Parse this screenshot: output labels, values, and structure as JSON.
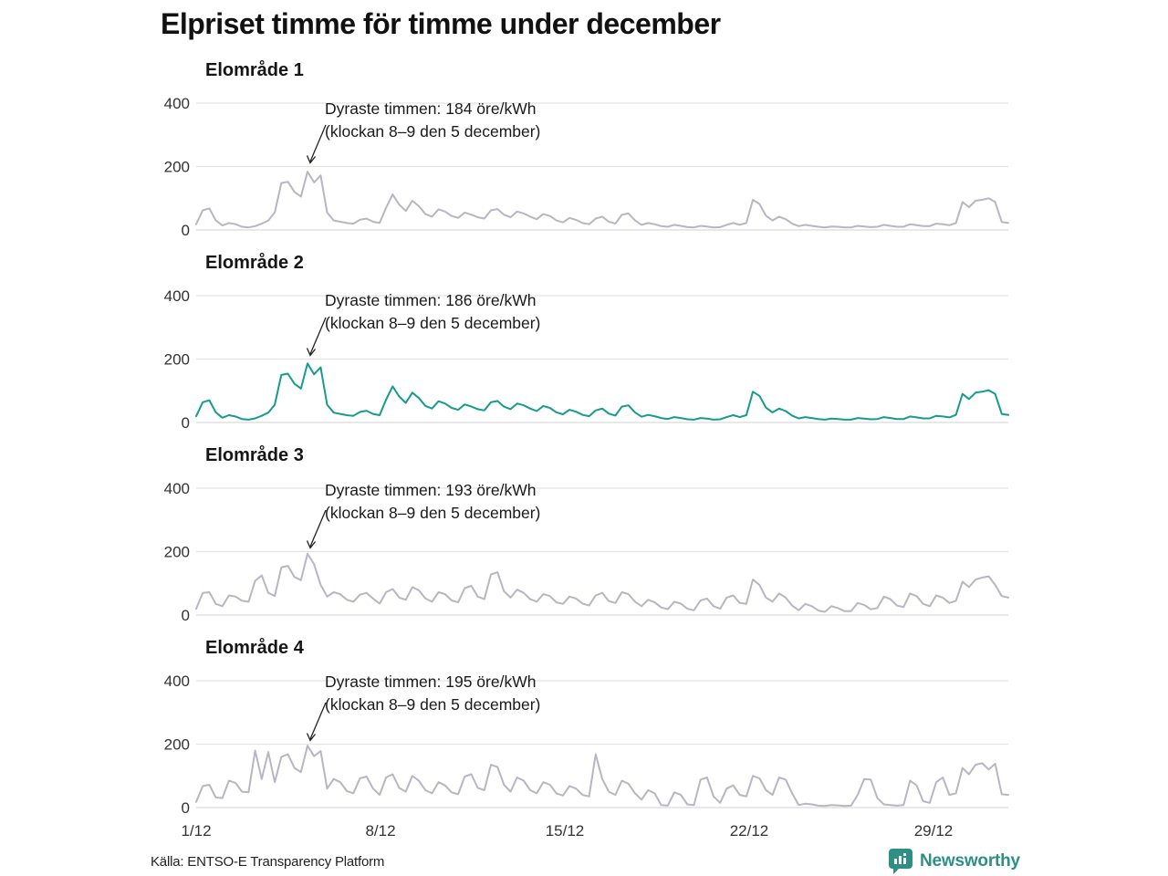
{
  "title": "Elpriset timme för timme under december",
  "source": "Källa: ENTSO-E Transparency Platform",
  "brand": {
    "name": "Newsworthy",
    "color": "#2e8f86",
    "icon": "bar-chart-speech-bubble-icon"
  },
  "colors": {
    "line_default": "#b7b6c2",
    "line_highlight": "#169b8d",
    "grid": "#e4e4e4",
    "text": "#1a1a1a",
    "tick": "#333333"
  },
  "x_ticks": [
    "1/12",
    "8/12",
    "15/12",
    "22/12",
    "29/12"
  ],
  "chart_data": [
    {
      "type": "line",
      "title": "Elområde 1",
      "annotation_line1": "Dyraste timmen: 184 öre/kWh",
      "annotation_line2": "(klockan 8–9 den 5 december)",
      "max_value_ore_per_kwh": 184,
      "max_time": "klockan 8–9 den 5 december",
      "color": "#b7b6c2",
      "y_ticks": [
        "400",
        "200",
        "0"
      ],
      "ylim": [
        0,
        440
      ],
      "x_range_days": [
        "1/12",
        "31/12"
      ],
      "samples_per_day": 4,
      "values": [
        18,
        62,
        68,
        30,
        14,
        22,
        18,
        10,
        8,
        12,
        20,
        30,
        55,
        148,
        152,
        120,
        105,
        184,
        150,
        172,
        55,
        30,
        26,
        22,
        20,
        32,
        36,
        26,
        22,
        70,
        112,
        80,
        60,
        92,
        75,
        50,
        42,
        65,
        58,
        44,
        38,
        55,
        48,
        40,
        36,
        62,
        66,
        48,
        40,
        58,
        52,
        42,
        34,
        50,
        44,
        30,
        24,
        38,
        32,
        22,
        18,
        36,
        42,
        26,
        20,
        48,
        52,
        30,
        16,
        22,
        18,
        12,
        10,
        16,
        13,
        9,
        8,
        13,
        11,
        8,
        9,
        16,
        22,
        16,
        22,
        95,
        82,
        45,
        30,
        42,
        34,
        20,
        12,
        16,
        13,
        10,
        8,
        11,
        10,
        8,
        8,
        13,
        11,
        9,
        10,
        16,
        13,
        10,
        10,
        18,
        15,
        12,
        12,
        20,
        18,
        15,
        22,
        88,
        72,
        92,
        95,
        100,
        88,
        25,
        22
      ]
    },
    {
      "type": "line",
      "title": "Elområde 2",
      "annotation_line1": "Dyraste timmen: 186 öre/kWh",
      "annotation_line2": "(klockan 8–9 den 5 december)",
      "max_value_ore_per_kwh": 186,
      "max_time": "klockan 8–9 den 5 december",
      "color": "#169b8d",
      "y_ticks": [
        "400",
        "200",
        "0"
      ],
      "ylim": [
        0,
        440
      ],
      "x_range_days": [
        "1/12",
        "31/12"
      ],
      "samples_per_day": 4,
      "values": [
        20,
        64,
        70,
        32,
        15,
        23,
        19,
        11,
        9,
        13,
        21,
        31,
        56,
        150,
        154,
        122,
        107,
        186,
        152,
        174,
        56,
        31,
        27,
        23,
        21,
        33,
        37,
        27,
        23,
        72,
        114,
        82,
        62,
        94,
        77,
        52,
        44,
        67,
        60,
        46,
        40,
        57,
        50,
        42,
        38,
        64,
        68,
        50,
        42,
        60,
        54,
        44,
        36,
        52,
        46,
        32,
        26,
        40,
        34,
        24,
        20,
        38,
        44,
        28,
        22,
        50,
        54,
        32,
        18,
        24,
        20,
        14,
        11,
        17,
        14,
        10,
        9,
        14,
        12,
        9,
        10,
        17,
        23,
        17,
        23,
        97,
        84,
        47,
        32,
        44,
        36,
        22,
        13,
        17,
        14,
        11,
        9,
        12,
        11,
        9,
        9,
        14,
        12,
        10,
        11,
        17,
        14,
        11,
        11,
        19,
        16,
        13,
        13,
        21,
        19,
        16,
        24,
        90,
        74,
        94,
        97,
        102,
        90,
        27,
        24
      ]
    },
    {
      "type": "line",
      "title": "Elområde 3",
      "annotation_line1": "Dyraste timmen: 193 öre/kWh",
      "annotation_line2": "(klockan 8–9 den 5 december)",
      "max_value_ore_per_kwh": 193,
      "max_time": "klockan 8–9 den 5 december",
      "color": "#b7b6c2",
      "y_ticks": [
        "400",
        "200",
        "0"
      ],
      "ylim": [
        0,
        440
      ],
      "x_range_days": [
        "1/12",
        "31/12"
      ],
      "samples_per_day": 4,
      "values": [
        20,
        70,
        72,
        35,
        28,
        62,
        58,
        45,
        42,
        108,
        125,
        70,
        60,
        150,
        155,
        120,
        110,
        193,
        160,
        95,
        58,
        72,
        66,
        48,
        42,
        64,
        70,
        52,
        36,
        72,
        82,
        55,
        48,
        88,
        78,
        52,
        42,
        72,
        66,
        46,
        40,
        85,
        92,
        58,
        50,
        128,
        135,
        75,
        55,
        80,
        70,
        50,
        42,
        66,
        60,
        40,
        35,
        58,
        52,
        36,
        30,
        62,
        70,
        44,
        38,
        72,
        66,
        42,
        28,
        48,
        40,
        24,
        18,
        42,
        36,
        20,
        15,
        46,
        52,
        28,
        20,
        55,
        62,
        38,
        35,
        112,
        95,
        55,
        42,
        68,
        55,
        30,
        15,
        35,
        28,
        14,
        10,
        28,
        22,
        12,
        12,
        38,
        32,
        18,
        22,
        58,
        50,
        30,
        25,
        68,
        60,
        35,
        28,
        62,
        55,
        38,
        45,
        105,
        88,
        112,
        118,
        122,
        95,
        60,
        55
      ]
    },
    {
      "type": "line",
      "title": "Elområde 4",
      "annotation_line1": "Dyraste timmen: 195 öre/kWh",
      "annotation_line2": "(klockan 8–9 den 5 december)",
      "max_value_ore_per_kwh": 195,
      "max_time": "klockan 8–9 den 5 december",
      "color": "#b7b6c2",
      "y_ticks": [
        "400",
        "200",
        "0"
      ],
      "ylim": [
        0,
        440
      ],
      "x_range_days": [
        "1/12",
        "31/12"
      ],
      "samples_per_day": 4,
      "values": [
        18,
        68,
        72,
        32,
        30,
        85,
        78,
        50,
        48,
        180,
        90,
        175,
        80,
        160,
        168,
        125,
        112,
        195,
        162,
        178,
        60,
        90,
        80,
        52,
        45,
        92,
        98,
        60,
        40,
        95,
        105,
        62,
        50,
        100,
        85,
        55,
        45,
        80,
        70,
        48,
        42,
        98,
        105,
        62,
        55,
        135,
        128,
        72,
        50,
        95,
        85,
        55,
        45,
        80,
        72,
        45,
        38,
        68,
        60,
        40,
        35,
        168,
        90,
        50,
        40,
        85,
        75,
        45,
        25,
        55,
        45,
        8,
        6,
        48,
        40,
        10,
        8,
        88,
        95,
        35,
        15,
        60,
        70,
        40,
        35,
        100,
        92,
        55,
        40,
        95,
        88,
        45,
        8,
        12,
        10,
        6,
        5,
        8,
        7,
        5,
        6,
        40,
        90,
        88,
        30,
        10,
        8,
        6,
        8,
        85,
        70,
        20,
        15,
        80,
        95,
        40,
        45,
        125,
        105,
        135,
        140,
        120,
        138,
        42,
        40
      ]
    }
  ]
}
